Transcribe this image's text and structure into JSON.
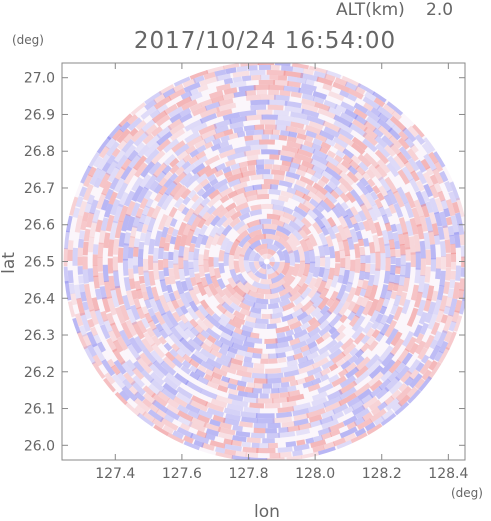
{
  "header": {
    "altitude_label": "ALT(km)",
    "altitude_value": "2.0",
    "timestamp": "2017/10/24 16:54:00"
  },
  "chart_data": {
    "type": "heatmap",
    "title": "2017/10/24 16:54:00",
    "subtitle": "ALT(km) 2.0",
    "xlabel": "lon",
    "ylabel": "lat",
    "x_unit": "(deg)",
    "y_unit": "(deg)",
    "xlim": [
      127.24,
      128.45
    ],
    "ylim": [
      25.96,
      27.04
    ],
    "x_ticks": [
      127.4,
      127.6,
      127.8,
      128.0,
      128.2,
      128.4
    ],
    "x_tick_labels": [
      "127.4",
      "127.6",
      "127.8",
      "128.0",
      "128.2",
      "128.4"
    ],
    "y_ticks": [
      26.0,
      26.1,
      26.2,
      26.3,
      26.4,
      26.5,
      26.6,
      26.7,
      26.8,
      26.9,
      27.0
    ],
    "y_tick_labels": [
      "26.0",
      "26.1",
      "26.2",
      "26.3",
      "26.4",
      "26.5",
      "26.6",
      "26.7",
      "26.8",
      "26.9",
      "27.0"
    ],
    "radar_center": {
      "lon": 127.855,
      "lat": 26.5
    },
    "radar_range_lon": 0.61,
    "radar_range_lat": 0.545,
    "colors": {
      "positive": "#f08a8a",
      "negative": "#8a8af0",
      "frame": "#888888",
      "text": "#666666"
    },
    "grid": false,
    "legend": "none"
  }
}
